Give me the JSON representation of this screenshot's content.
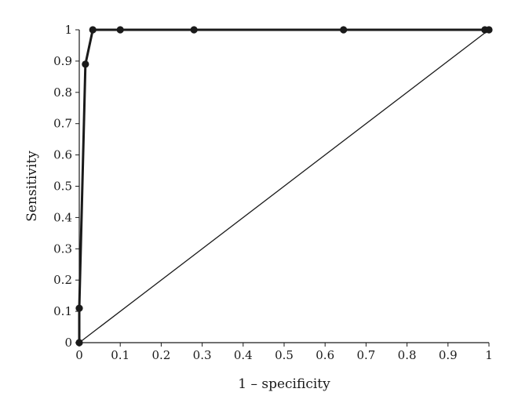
{
  "chart_data": {
    "type": "line",
    "xlabel": "1 – specificity",
    "ylabel": "Sensitivity",
    "xlim": [
      0,
      1
    ],
    "ylim": [
      0,
      1
    ],
    "x_ticks": [
      "0",
      "0.1",
      "0.2",
      "0.3",
      "0.4",
      "0.5",
      "0.6",
      "0.7",
      "0.8",
      "0.9",
      "1"
    ],
    "y_ticks": [
      "0",
      "0.1",
      "0.2",
      "0.3",
      "0.4",
      "0.5",
      "0.6",
      "0.7",
      "0.8",
      "0.9",
      "1"
    ],
    "grid": false,
    "legend": "none",
    "series": [
      {
        "points": [
          {
            "x": 0.0,
            "y": 0.0
          },
          {
            "x": 0.0,
            "y": 0.11
          },
          {
            "x": 0.015,
            "y": 0.89
          },
          {
            "x": 0.033,
            "y": 1.0
          },
          {
            "x": 0.1,
            "y": 1.0
          },
          {
            "x": 0.28,
            "y": 1.0
          },
          {
            "x": 0.645,
            "y": 1.0
          },
          {
            "x": 0.99,
            "y": 1.0
          },
          {
            "x": 1.0,
            "y": 1.0
          }
        ],
        "color": "#1a1a1a",
        "markers": true
      },
      {
        "points": [
          {
            "x": 0.0,
            "y": 0.0
          },
          {
            "x": 1.0,
            "y": 1.0
          }
        ],
        "color": "#1a1a1a",
        "markers": false
      }
    ]
  }
}
